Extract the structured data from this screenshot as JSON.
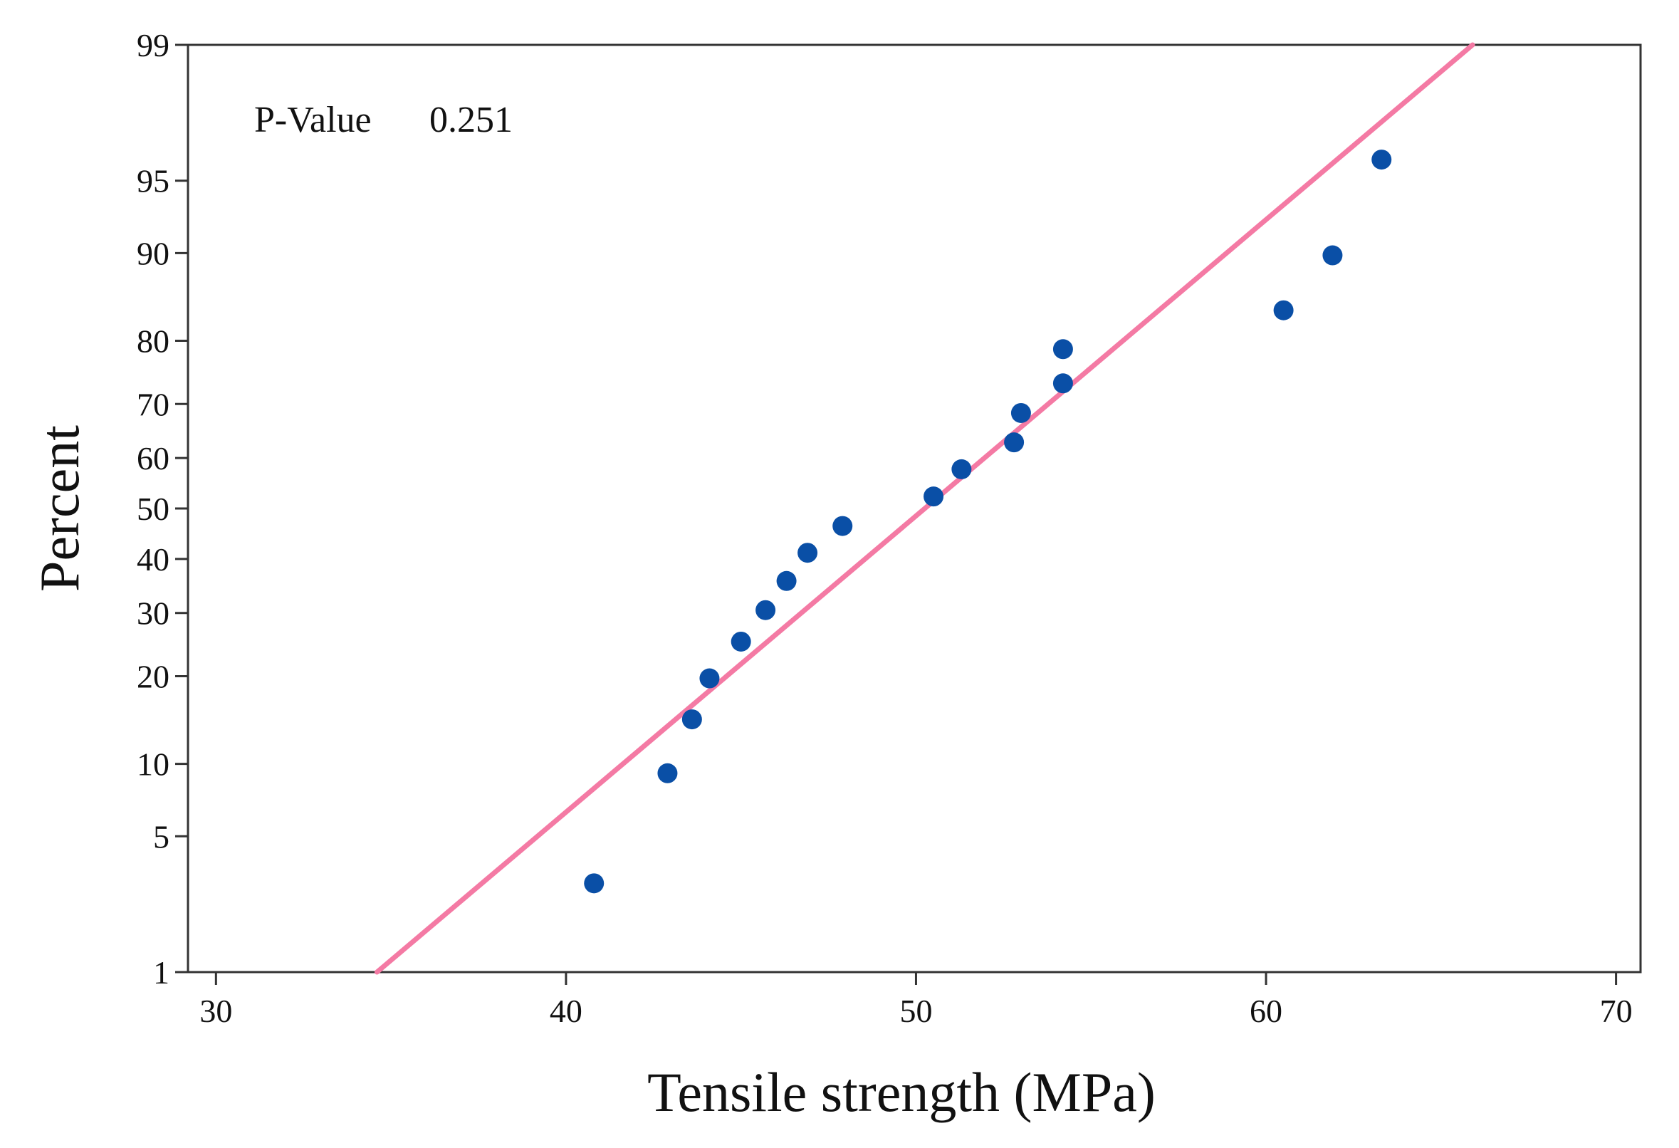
{
  "chart_data": {
    "type": "scatter",
    "title": "",
    "xlabel": "Tensile strength (MPa)",
    "ylabel": "Percent",
    "xlim": [
      29.2,
      70.7
    ],
    "ylim": [
      1,
      99
    ],
    "y_scale": "normal-probability",
    "grid": false,
    "legend": "none",
    "x_ticks": [
      30,
      40,
      50,
      60,
      70
    ],
    "y_ticks": [
      1,
      5,
      10,
      20,
      30,
      40,
      50,
      60,
      70,
      80,
      90,
      95,
      99
    ],
    "annotation": {
      "label": "P-Value",
      "value": "0.251"
    },
    "fit_line": {
      "points": [
        [
          34.6,
          1
        ],
        [
          65.9,
          99
        ]
      ],
      "color": "#f47aa4"
    },
    "series": [
      {
        "color": "#0a4fa6",
        "points": [
          [
            40.8,
            3.0
          ],
          [
            42.9,
            9.2
          ],
          [
            43.6,
            14.5
          ],
          [
            44.1,
            19.7
          ],
          [
            45.0,
            25.2
          ],
          [
            45.7,
            30.5
          ],
          [
            46.3,
            35.8
          ],
          [
            46.9,
            41.2
          ],
          [
            47.9,
            46.5
          ],
          [
            50.5,
            52.4
          ],
          [
            51.3,
            57.8
          ],
          [
            52.8,
            63.0
          ],
          [
            53.0,
            68.4
          ],
          [
            54.2,
            73.5
          ],
          [
            54.2,
            78.8
          ],
          [
            60.5,
            84.0
          ],
          [
            61.9,
            89.8
          ],
          [
            63.3,
            96.0
          ]
        ]
      }
    ]
  }
}
